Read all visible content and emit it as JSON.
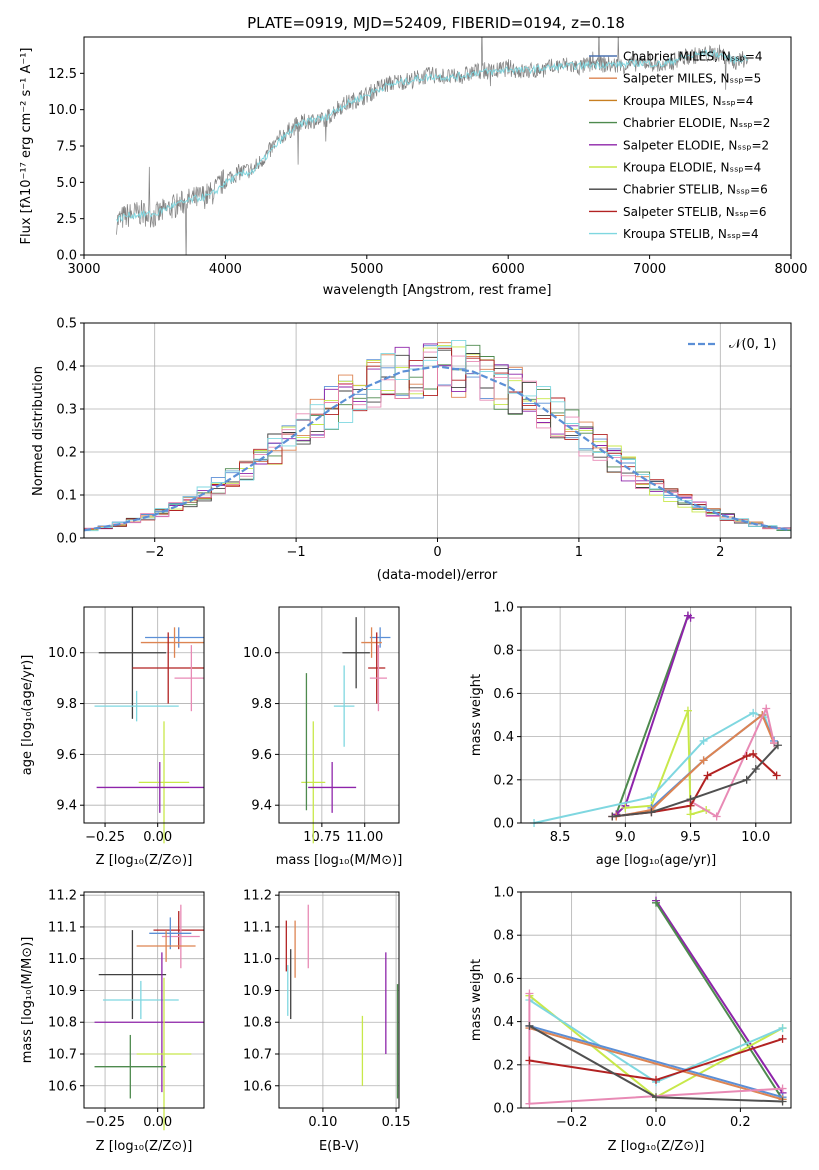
{
  "chart_data": [
    {
      "type": "line",
      "title": "PLATE=0919, MJD=52409, FIBERID=0194, z=0.18",
      "xlabel": "wavelength [Angstrom, rest frame]",
      "ylabel": "Flux [fλ10⁻¹⁷ erg cm⁻² s⁻¹ A⁻¹]",
      "xlim": [
        3000,
        8000
      ],
      "ylim": [
        0,
        15
      ],
      "xticks": [
        "3000",
        "4000",
        "5000",
        "6000",
        "7000",
        "8000"
      ],
      "yticks": [
        "0.0",
        "2.5",
        "5.0",
        "7.5",
        "10.0",
        "12.5"
      ],
      "legend_position": "top-right",
      "legend": [
        {
          "label": "Chabrier MILES, Nₛₛₚ=4",
          "color": "#4c72b0"
        },
        {
          "label": "Salpeter MILES, Nₛₛₚ=5",
          "color": "#dd8452"
        },
        {
          "label": "Kroupa MILES, Nₛₛₚ=4",
          "color": "#c87f20"
        },
        {
          "label": "Chabrier ELODIE, Nₛₛₚ=2",
          "color": "#4e8a4e"
        },
        {
          "label": "Salpeter ELODIE, Nₛₛₚ=2",
          "color": "#8e24aa"
        },
        {
          "label": "Kroupa ELODIE, Nₛₛₚ=4",
          "color": "#c8e84a"
        },
        {
          "label": "Chabrier STELIB, Nₛₛₚ=6",
          "color": "#404040"
        },
        {
          "label": "Salpeter STELIB, Nₛₛₚ=6",
          "color": "#b22222"
        },
        {
          "label": "Kroupa STELIB, Nₛₛₚ=4",
          "color": "#7fd7e0"
        }
      ],
      "series": [
        {
          "name": "data",
          "color": "#808080",
          "x": [
            3230,
            3300,
            3400,
            3500,
            3600,
            3700,
            3800,
            3900,
            4000,
            4100,
            4200,
            4300,
            4400,
            4500,
            4600,
            4700,
            4800,
            4900,
            5000,
            5100,
            5200,
            5300,
            5400,
            5500,
            5600,
            5700,
            5800,
            5900,
            6000,
            6100,
            6200,
            6300,
            6400,
            6500,
            6600,
            6700,
            6800,
            6900,
            7000,
            7100,
            7200,
            7300,
            7400,
            7500,
            7600,
            7700
          ],
          "y": [
            2.3,
            2.7,
            2.9,
            2.7,
            3.2,
            3.6,
            3.9,
            4.2,
            5.2,
            5.7,
            5.9,
            7.0,
            8.2,
            8.9,
            9.3,
            9.2,
            10.2,
            10.6,
            11.0,
            11.6,
            11.9,
            12.0,
            12.3,
            12.4,
            12.2,
            12.4,
            12.7,
            12.6,
            12.9,
            12.6,
            12.7,
            12.9,
            13.1,
            12.9,
            13.2,
            13.1,
            13.0,
            13.2,
            13.3,
            12.9,
            13.5,
            13.7,
            13.8,
            13.9,
            13.2,
            13.6
          ]
        },
        {
          "name": "model",
          "color": "#7fd7e0",
          "x": [
            3230,
            3300,
            3400,
            3500,
            3600,
            3700,
            3800,
            3900,
            4000,
            4100,
            4200,
            4300,
            4400,
            4500,
            4600,
            4700,
            4800,
            4900,
            5000,
            5100,
            5200,
            5300,
            5400,
            5500,
            5600,
            5700,
            5800,
            5900,
            6000,
            6100,
            6200,
            6300,
            6400,
            6500,
            6600,
            6700,
            6800,
            6900,
            7000,
            7100,
            7200,
            7300,
            7400,
            7500,
            7600,
            7700
          ],
          "y": [
            2.4,
            2.7,
            2.8,
            2.8,
            3.3,
            3.6,
            3.9,
            4.1,
            5.0,
            5.5,
            5.8,
            6.9,
            8.0,
            8.8,
            9.3,
            9.4,
            10.1,
            10.6,
            11.0,
            11.5,
            11.8,
            12.0,
            12.2,
            12.3,
            12.2,
            12.4,
            12.6,
            12.6,
            12.8,
            12.7,
            12.8,
            12.9,
            13.0,
            13.0,
            13.1,
            13.1,
            13.1,
            13.2,
            13.2,
            13.1,
            13.5,
            13.7,
            13.9,
            13.8,
            13.4,
            13.6
          ]
        }
      ]
    },
    {
      "type": "line",
      "xlabel": "(data-model)/error",
      "ylabel": "Normed distribution",
      "xlim": [
        -2.5,
        2.5
      ],
      "ylim": [
        0,
        0.5
      ],
      "xticks": [
        "−2",
        "−1",
        "0",
        "1",
        "2"
      ],
      "yticks": [
        "0.0",
        "0.1",
        "0.2",
        "0.3",
        "0.4",
        "0.5"
      ],
      "grid": true,
      "legend_position": "top-right",
      "legend": [
        {
          "label": "𝒩(0, 1)",
          "color": "#5b8fd6"
        }
      ],
      "series": [
        {
          "name": "𝒩(0, 1)",
          "color": "#5b8fd6",
          "style": "dashed",
          "x": [
            -2.5,
            -2.25,
            -2.0,
            -1.75,
            -1.5,
            -1.25,
            -1.0,
            -0.75,
            -0.5,
            -0.25,
            0,
            0.25,
            0.5,
            0.75,
            1.0,
            1.25,
            1.5,
            1.75,
            2.0,
            2.25,
            2.5
          ],
          "y": [
            0.018,
            0.032,
            0.054,
            0.086,
            0.13,
            0.183,
            0.242,
            0.301,
            0.352,
            0.387,
            0.399,
            0.387,
            0.352,
            0.301,
            0.242,
            0.183,
            0.13,
            0.086,
            0.054,
            0.032,
            0.018
          ]
        }
      ]
    },
    {
      "type": "scatter",
      "xlabel": "Z [log₁₀(Z/Z⊙)]",
      "ylabel": "age  [log₁₀(age/yr)]",
      "xlim": [
        -0.35,
        0.22
      ],
      "ylim": [
        9.33,
        10.18
      ],
      "xticks": [
        "−0.25",
        "0.00"
      ],
      "yticks": [
        "9.4",
        "9.6",
        "9.8",
        "10.0"
      ],
      "grid": true,
      "points": [
        {
          "x": 0.1,
          "y": 10.06,
          "xerr": 0.16,
          "yerr": 0.04,
          "color": "#5b8fd6"
        },
        {
          "x": 0.08,
          "y": 10.04,
          "xerr": 0.16,
          "yerr": 0.06,
          "color": "#dd8452"
        },
        {
          "x": -0.12,
          "y": 10.0,
          "xerr": 0.16,
          "yerr": 0.26,
          "color": "#404040"
        },
        {
          "x": 0.05,
          "y": 9.94,
          "xerr": 0.17,
          "yerr": 0.14,
          "color": "#b22222"
        },
        {
          "x": 0.16,
          "y": 9.9,
          "xerr": 0.08,
          "yerr": 0.13,
          "color": "#e88ab5"
        },
        {
          "x": -0.1,
          "y": 9.79,
          "xerr": 0.2,
          "yerr": 0.06,
          "color": "#7fd7e0"
        },
        {
          "x": 0.03,
          "y": 9.49,
          "xerr": 0.12,
          "yerr": 0.24,
          "color": "#c8e84a"
        },
        {
          "x": 0.01,
          "y": 9.47,
          "xerr": 0.3,
          "yerr": 0.1,
          "color": "#8e24aa"
        }
      ]
    },
    {
      "type": "scatter",
      "xlabel": "mass [log₁₀(M/M⊙)]",
      "xlim": [
        10.5,
        11.2
      ],
      "ylim": [
        9.33,
        10.18
      ],
      "xticks": [
        "10.75",
        "11.00"
      ],
      "yticks": [
        "9.4",
        "9.6",
        "9.8",
        "10.0"
      ],
      "grid": true,
      "points": [
        {
          "x": 11.09,
          "y": 10.06,
          "xerr": 0.06,
          "yerr": 0.04,
          "color": "#5b8fd6"
        },
        {
          "x": 11.04,
          "y": 10.04,
          "xerr": 0.06,
          "yerr": 0.06,
          "color": "#dd8452"
        },
        {
          "x": 10.95,
          "y": 10.0,
          "xerr": 0.08,
          "yerr": 0.14,
          "color": "#404040"
        },
        {
          "x": 11.07,
          "y": 9.94,
          "xerr": 0.05,
          "yerr": 0.14,
          "color": "#b22222"
        },
        {
          "x": 11.08,
          "y": 9.9,
          "xerr": 0.05,
          "yerr": 0.13,
          "color": "#e88ab5"
        },
        {
          "x": 10.88,
          "y": 9.79,
          "xerr": 0.06,
          "yerr": 0.16,
          "color": "#7fd7e0"
        },
        {
          "x": 10.7,
          "y": 9.49,
          "xerr": 0.07,
          "yerr": 0.24,
          "color": "#c8e84a"
        },
        {
          "x": 10.81,
          "y": 9.47,
          "xerr": 0.14,
          "yerr": 0.1,
          "color": "#8e24aa"
        },
        {
          "x": 10.66,
          "y": 9.65,
          "xerr": 0.0,
          "yerr": 0.27,
          "color": "#4e8a4e"
        }
      ]
    },
    {
      "type": "line",
      "xlabel": "age  [log₁₀(age/yr)]",
      "ylabel": "mass weight",
      "xlim": [
        8.2,
        10.27
      ],
      "ylim": [
        0,
        1.0
      ],
      "xticks": [
        "8.5",
        "9.0",
        "9.5",
        "10.0"
      ],
      "yticks": [
        "0.0",
        "0.2",
        "0.4",
        "0.6",
        "0.8",
        "1.0"
      ],
      "grid": true,
      "series": [
        {
          "color": "#4e8a4e",
          "x": [
            8.93,
            9.48
          ],
          "y": [
            0.04,
            0.96
          ]
        },
        {
          "color": "#8e24aa",
          "x": [
            8.93,
            9.0,
            9.48,
            9.5
          ],
          "y": [
            0.04,
            0.08,
            0.96,
            0.95
          ]
        },
        {
          "color": "#c8e84a",
          "x": [
            9.0,
            9.2,
            9.48,
            9.5,
            9.62
          ],
          "y": [
            0.07,
            0.08,
            0.52,
            0.04,
            0.06
          ]
        },
        {
          "color": "#7fd7e0",
          "x": [
            8.3,
            9.2,
            9.6,
            9.98,
            10.07,
            10.14
          ],
          "y": [
            0.0,
            0.12,
            0.38,
            0.51,
            0.49,
            0.37
          ]
        },
        {
          "color": "#5b8fd6",
          "x": [
            9.2,
            9.6,
            10.05,
            10.14
          ],
          "y": [
            0.07,
            0.29,
            0.5,
            0.38
          ]
        },
        {
          "color": "#dd8452",
          "x": [
            8.93,
            9.2,
            9.6,
            10.05,
            10.14
          ],
          "y": [
            0.03,
            0.06,
            0.29,
            0.5,
            0.37
          ]
        },
        {
          "color": "#e88ab5",
          "x": [
            9.5,
            9.7,
            10.08,
            10.14
          ],
          "y": [
            0.1,
            0.03,
            0.53,
            0.37
          ]
        },
        {
          "color": "#b22222",
          "x": [
            8.9,
            9.2,
            9.5,
            9.63,
            9.93,
            9.98,
            10.16
          ],
          "y": [
            0.03,
            0.05,
            0.08,
            0.22,
            0.31,
            0.32,
            0.22
          ]
        },
        {
          "color": "#505050",
          "x": [
            8.9,
            9.2,
            9.5,
            9.93,
            10.0,
            10.17
          ],
          "y": [
            0.03,
            0.05,
            0.11,
            0.2,
            0.25,
            0.36
          ]
        }
      ]
    },
    {
      "type": "scatter",
      "xlabel": "Z [log₁₀(Z/Z⊙)]",
      "ylabel": "mass [log₁₀(M/M⊙)]",
      "xlim": [
        -0.35,
        0.22
      ],
      "ylim": [
        10.53,
        11.21
      ],
      "xticks": [
        "−0.25",
        "0.00"
      ],
      "yticks": [
        "10.6",
        "10.7",
        "10.8",
        "10.9",
        "11.0",
        "11.1",
        "11.2"
      ],
      "grid": true,
      "points": [
        {
          "x": 0.1,
          "y": 11.09,
          "xerr": 0.12,
          "yerr": 0.06,
          "color": "#b22222"
        },
        {
          "x": 0.11,
          "y": 11.07,
          "xerr": 0.09,
          "yerr": 0.1,
          "color": "#e88ab5"
        },
        {
          "x": 0.06,
          "y": 11.08,
          "xerr": 0.1,
          "yerr": 0.05,
          "color": "#5b8fd6"
        },
        {
          "x": 0.04,
          "y": 11.04,
          "xerr": 0.14,
          "yerr": 0.05,
          "color": "#dd8452"
        },
        {
          "x": -0.12,
          "y": 10.95,
          "xerr": 0.16,
          "yerr": 0.14,
          "color": "#404040"
        },
        {
          "x": -0.08,
          "y": 10.87,
          "xerr": 0.18,
          "yerr": 0.06,
          "color": "#7fd7e0"
        },
        {
          "x": 0.02,
          "y": 10.8,
          "xerr": 0.32,
          "yerr": 0.22,
          "color": "#8e24aa"
        },
        {
          "x": 0.03,
          "y": 10.7,
          "xerr": 0.13,
          "yerr": 0.24,
          "color": "#c8e84a"
        },
        {
          "x": -0.13,
          "y": 10.66,
          "xerr": 0.17,
          "yerr": 0.1,
          "color": "#4e8a4e"
        }
      ]
    },
    {
      "type": "scatter",
      "xlabel": "E(B-V)",
      "xlim": [
        0.07,
        0.152
      ],
      "ylim": [
        10.53,
        11.21
      ],
      "xticks": [
        "0.10",
        "0.15"
      ],
      "yticks": [
        "10.6",
        "10.7",
        "10.8",
        "10.9",
        "11.0",
        "11.1",
        "11.2"
      ],
      "grid": true,
      "points": [
        {
          "x": 0.075,
          "y": 11.04,
          "xerr": 0,
          "yerr": 0.08,
          "color": "#b22222"
        },
        {
          "x": 0.078,
          "y": 10.92,
          "xerr": 0,
          "yerr": 0.11,
          "color": "#404040"
        },
        {
          "x": 0.076,
          "y": 10.9,
          "xerr": 0,
          "yerr": 0.08,
          "color": "#7fd7e0"
        },
        {
          "x": 0.081,
          "y": 11.03,
          "xerr": 0,
          "yerr": 0.09,
          "color": "#dd8452"
        },
        {
          "x": 0.09,
          "y": 11.07,
          "xerr": 0,
          "yerr": 0.1,
          "color": "#e88ab5"
        },
        {
          "x": 0.127,
          "y": 10.71,
          "xerr": 0,
          "yerr": 0.11,
          "color": "#c8e84a"
        },
        {
          "x": 0.143,
          "y": 10.86,
          "xerr": 0,
          "yerr": 0.16,
          "color": "#8e24aa"
        },
        {
          "x": 0.151,
          "y": 10.74,
          "xerr": 0,
          "yerr": 0.18,
          "color": "#4e8a4e"
        }
      ]
    },
    {
      "type": "line",
      "xlabel": "Z [log₁₀(Z/Z⊙)]",
      "ylabel": "mass weight",
      "xlim": [
        -0.32,
        0.32
      ],
      "ylim": [
        0,
        1.0
      ],
      "xticks": [
        "−0.2",
        "0.0",
        "0.2"
      ],
      "yticks": [
        "0.0",
        "0.2",
        "0.4",
        "0.6",
        "0.8",
        "1.0"
      ],
      "grid": true,
      "series": [
        {
          "color": "#8e24aa",
          "x": [
            0.0,
            0.3
          ],
          "y": [
            0.96,
            0.07
          ]
        },
        {
          "color": "#4e8a4e",
          "x": [
            0.0,
            0.3
          ],
          "y": [
            0.95,
            0.04
          ]
        },
        {
          "color": "#c8e84a",
          "x": [
            -0.3,
            0.0,
            0.3
          ],
          "y": [
            0.52,
            0.05,
            0.37
          ]
        },
        {
          "color": "#7fd7e0",
          "x": [
            -0.3,
            0.0,
            0.3
          ],
          "y": [
            0.5,
            0.12,
            0.37
          ]
        },
        {
          "color": "#5b8fd6",
          "x": [
            -0.3,
            0.3
          ],
          "y": [
            0.38,
            0.05
          ]
        },
        {
          "color": "#dd8452",
          "x": [
            -0.3,
            0.3
          ],
          "y": [
            0.37,
            0.04
          ]
        },
        {
          "color": "#e88ab5",
          "x": [
            -0.3,
            -0.3,
            0.3
          ],
          "y": [
            0.53,
            0.02,
            0.09
          ]
        },
        {
          "color": "#b22222",
          "x": [
            -0.3,
            0.0,
            0.3
          ],
          "y": [
            0.22,
            0.13,
            0.32
          ]
        },
        {
          "color": "#505050",
          "x": [
            -0.3,
            0.0,
            0.3
          ],
          "y": [
            0.38,
            0.05,
            0.03
          ]
        }
      ]
    }
  ]
}
